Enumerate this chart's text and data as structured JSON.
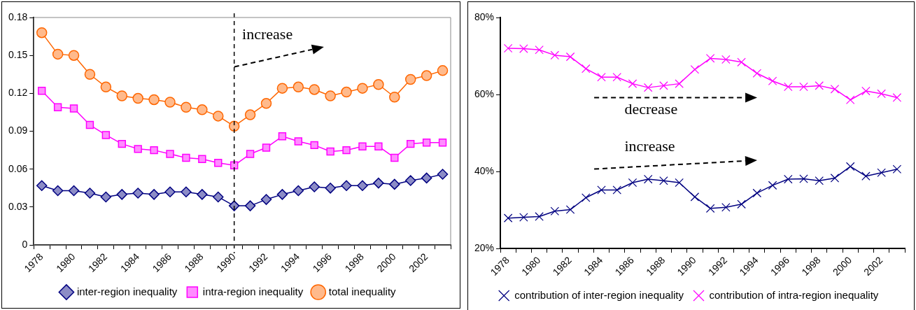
{
  "chart_data": [
    {
      "type": "line",
      "categories": [
        "1978",
        null,
        "1980",
        null,
        "1982",
        null,
        "1984",
        null,
        "1986",
        null,
        "1988",
        null,
        "1990",
        null,
        "1992",
        null,
        "1994",
        null,
        "1996",
        null,
        "1998",
        null,
        "2000",
        null,
        "2002",
        null
      ],
      "series": [
        {
          "name": "inter-region inequality",
          "color": "#000080",
          "marker": "diamond",
          "values": [
            0.047,
            0.043,
            0.043,
            0.041,
            0.038,
            0.04,
            0.041,
            0.04,
            0.042,
            0.042,
            0.04,
            0.038,
            0.031,
            0.031,
            0.036,
            0.04,
            0.043,
            0.046,
            0.045,
            0.047,
            0.047,
            0.049,
            0.048,
            0.051,
            0.053,
            0.056
          ]
        },
        {
          "name": "intra-region inequality",
          "color": "#ff00ff",
          "marker": "square",
          "values": [
            0.122,
            0.109,
            0.108,
            0.095,
            0.087,
            0.08,
            0.076,
            0.075,
            0.072,
            0.069,
            0.068,
            0.065,
            0.063,
            0.072,
            0.077,
            0.086,
            0.082,
            0.079,
            0.074,
            0.075,
            0.078,
            0.078,
            0.069,
            0.08,
            0.081,
            0.081
          ]
        },
        {
          "name": "total inequality",
          "color": "#ff6600",
          "marker": "circle",
          "values": [
            0.168,
            0.151,
            0.15,
            0.135,
            0.125,
            0.118,
            0.116,
            0.115,
            0.113,
            0.109,
            0.107,
            0.102,
            0.094,
            0.103,
            0.112,
            0.124,
            0.125,
            0.123,
            0.118,
            0.121,
            0.124,
            0.127,
            0.117,
            0.131,
            0.134,
            0.138
          ]
        }
      ],
      "ylim": [
        0,
        0.18
      ],
      "yticks": [
        0,
        0.03,
        0.06,
        0.09,
        0.12,
        0.15,
        0.18
      ],
      "grid": false,
      "legend": "bottom",
      "ref_lines": [
        {
          "axis": "x",
          "value": "1990",
          "color": "#000000",
          "line_style": "dashed"
        }
      ],
      "annotations": [
        "increase"
      ]
    },
    {
      "type": "line",
      "categories": [
        "1978",
        null,
        "1980",
        null,
        "1982",
        null,
        "1984",
        null,
        "1986",
        null,
        "1988",
        null,
        "1990",
        null,
        "1992",
        null,
        "1994",
        null,
        "1996",
        null,
        "1998",
        null,
        "2000",
        null,
        "2002",
        null
      ],
      "series": [
        {
          "name": "contribution of inter-region inequality",
          "color": "#000080",
          "marker": "cross",
          "values": [
            27.9,
            28.1,
            28.3,
            29.7,
            30.1,
            33.2,
            35.2,
            35.2,
            37.1,
            38.0,
            37.6,
            37.1,
            33.4,
            30.4,
            30.7,
            31.5,
            34.4,
            36.4,
            38.0,
            38.1,
            37.6,
            38.3,
            41.3,
            38.8,
            39.7,
            40.6
          ]
        },
        {
          "name": "contribution of intra-region inequality",
          "color": "#ff00ff",
          "marker": "cross",
          "values": [
            72.0,
            71.9,
            71.6,
            70.2,
            69.8,
            66.7,
            64.5,
            64.5,
            62.8,
            61.8,
            62.3,
            62.8,
            66.5,
            69.4,
            69.1,
            68.4,
            65.5,
            63.5,
            62.0,
            62.0,
            62.3,
            61.4,
            58.6,
            60.9,
            60.2,
            59.2
          ]
        }
      ],
      "ylim": [
        20,
        80
      ],
      "yticks": [
        {
          "value": 20,
          "label": "20%"
        },
        {
          "value": 40,
          "label": "40%"
        },
        {
          "value": 60,
          "label": "60%"
        },
        {
          "value": 80,
          "label": "80%"
        }
      ],
      "grid": false,
      "legend": "bottom",
      "annotations": [
        "decrease",
        "increase"
      ]
    }
  ]
}
